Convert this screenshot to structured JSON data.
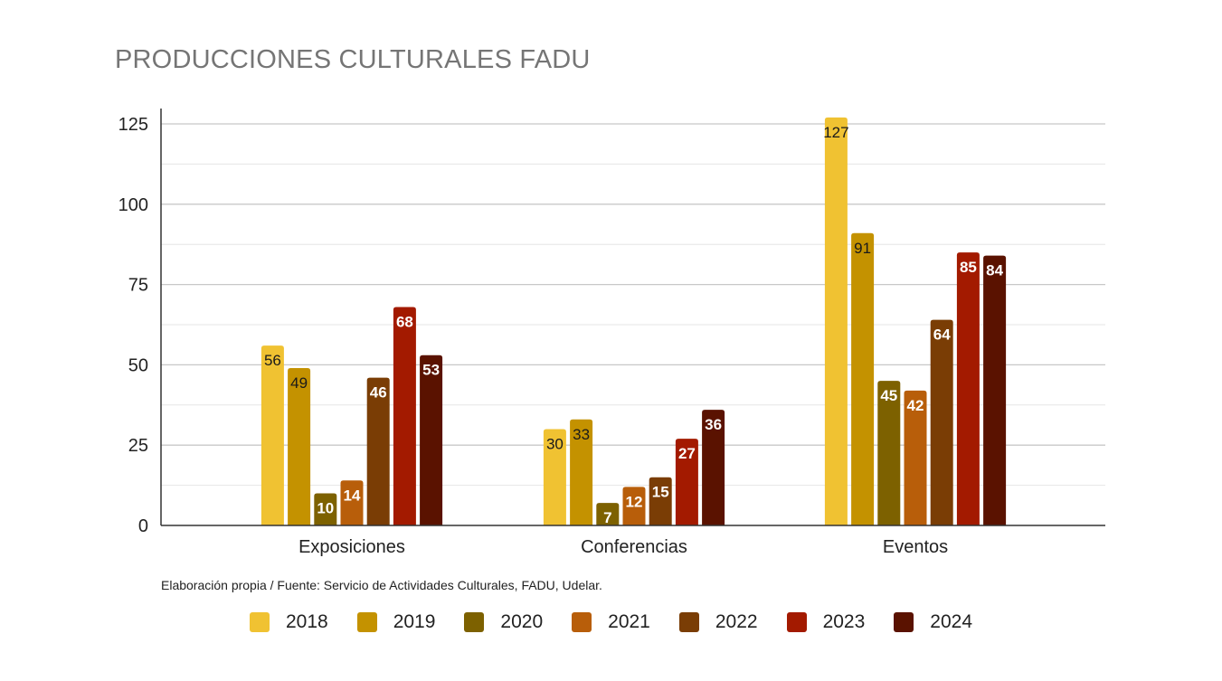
{
  "chart_data": {
    "type": "bar",
    "title": "PRODUCCIONES CULTURALES FADU",
    "source_note": "Elaboración propia / Fuente: Servicio de Actividades Culturales, FADU, Udelar.",
    "categories": [
      "Exposiciones",
      "Conferencias",
      "Eventos"
    ],
    "series": [
      {
        "name": "2018",
        "color": "#F0C232",
        "values": [
          56,
          30,
          127
        ]
      },
      {
        "name": "2019",
        "color": "#C49200",
        "values": [
          49,
          33,
          91
        ]
      },
      {
        "name": "2020",
        "color": "#7D6100",
        "values": [
          10,
          7,
          45
        ]
      },
      {
        "name": "2021",
        "color": "#B85E0A",
        "values": [
          14,
          12,
          42
        ]
      },
      {
        "name": "2022",
        "color": "#7A3D05",
        "values": [
          46,
          15,
          64
        ]
      },
      {
        "name": "2023",
        "color": "#A31A00",
        "values": [
          68,
          27,
          85
        ]
      },
      {
        "name": "2024",
        "color": "#5A1200",
        "values": [
          53,
          36,
          84
        ]
      }
    ],
    "yticks": [
      0,
      25,
      50,
      75,
      100,
      125
    ],
    "ylim": [
      0,
      130
    ],
    "grid": true,
    "legend_position": "bottom"
  }
}
